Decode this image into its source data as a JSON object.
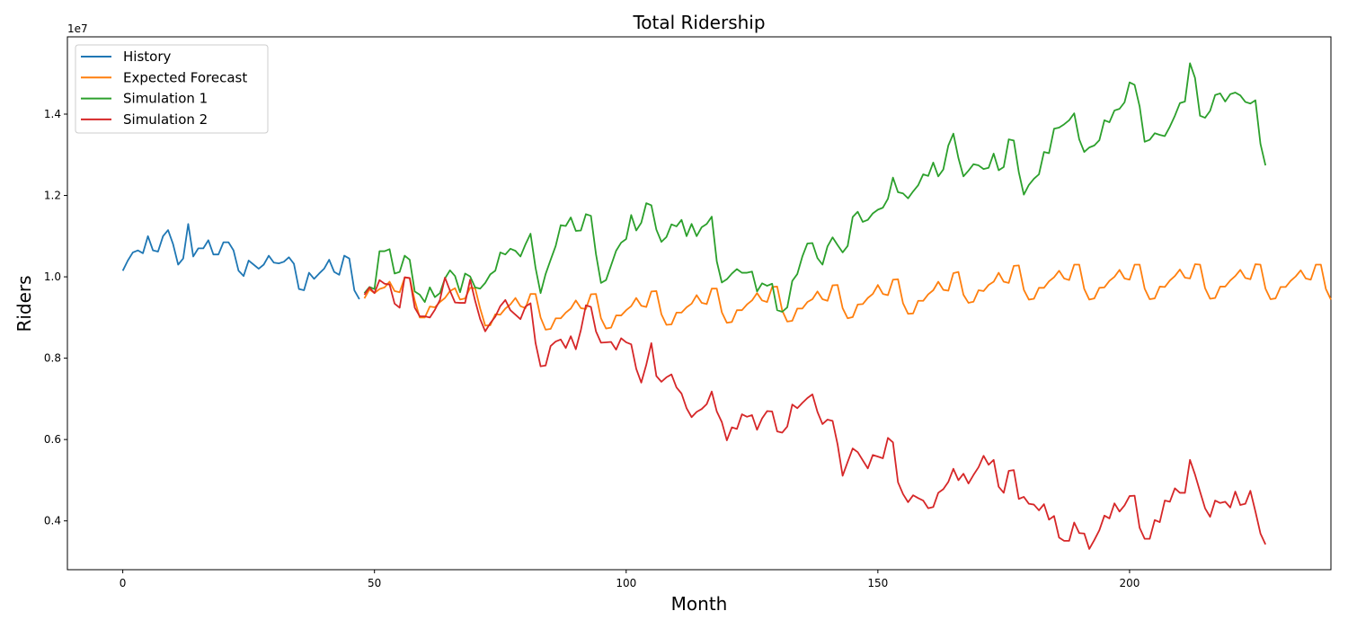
{
  "chart_data": {
    "type": "line",
    "title": "Total Ridership",
    "xlabel": "Month",
    "ylabel": "Riders",
    "y_offset_label": "1e7",
    "y_scale": 10000000,
    "xlim": [
      -11,
      240
    ],
    "ylim": [
      2800000,
      15900000
    ],
    "x_ticks": [
      0,
      50,
      100,
      150,
      200
    ],
    "y_ticks": [
      4000000,
      6000000,
      8000000,
      10000000,
      12000000,
      14000000
    ],
    "y_tick_labels": [
      "0.4",
      "0.6",
      "0.8",
      "1.0",
      "1.2",
      "1.4"
    ],
    "x_tick_labels": [
      "0",
      "50",
      "100",
      "150",
      "200"
    ],
    "grid": false,
    "legend_position": "top-left",
    "series": [
      {
        "name": "History",
        "color": "#1f77b4",
        "x_start": 0,
        "values": [
          10150000,
          10400000,
          10600000,
          10650000,
          10580000,
          11000000,
          10650000,
          10620000,
          11000000,
          11150000,
          10800000,
          10300000,
          10450000,
          11300000,
          10500000,
          10700000,
          10700000,
          10900000,
          10550000,
          10550000,
          10850000,
          10850000,
          10650000,
          10150000,
          10020000,
          10400000,
          10300000,
          10200000,
          10300000,
          10520000,
          10350000,
          10330000,
          10370000,
          10480000,
          10320000,
          9700000,
          9670000,
          10100000,
          9950000,
          10080000,
          10200000,
          10420000,
          10120000,
          10050000,
          10520000,
          10450000,
          9670000,
          9450000
        ]
      },
      {
        "name": "Expected Forecast",
        "color": "#ff7f0e",
        "x_start": 48,
        "values": [
          9470000,
          9690000,
          9600000,
          9700000,
          9740000,
          9880000,
          9650000,
          9620000,
          9980000,
          9970000,
          9420000,
          9000000,
          9000000,
          9270000,
          9250000,
          9380000,
          9480000,
          9650000,
          9720000,
          9440000,
          9470000,
          9730000,
          9720000,
          9220000,
          8800000,
          8810000,
          9080000,
          9070000,
          9220000,
          9320000,
          9480000,
          9280000,
          9230000,
          9580000,
          9580000,
          9000000,
          8700000,
          8720000,
          8980000,
          8980000,
          9120000,
          9220000,
          9420000,
          9230000,
          9210000,
          9570000,
          9580000,
          8980000,
          8730000,
          8750000,
          9050000,
          9050000,
          9180000,
          9280000,
          9480000,
          9290000,
          9260000,
          9640000,
          9650000,
          9080000,
          8820000,
          8830000,
          9120000,
          9120000,
          9250000,
          9340000,
          9550000,
          9360000,
          9330000,
          9710000,
          9710000,
          9130000,
          8870000,
          8890000,
          9180000,
          9180000,
          9320000,
          9420000,
          9600000,
          9420000,
          9380000,
          9750000,
          9760000,
          9170000,
          8900000,
          8920000,
          9220000,
          9220000,
          9380000,
          9450000,
          9640000,
          9450000,
          9410000,
          9790000,
          9800000,
          9230000,
          8980000,
          9010000,
          9320000,
          9330000,
          9480000,
          9580000,
          9800000,
          9580000,
          9550000,
          9930000,
          9940000,
          9350000,
          9090000,
          9100000,
          9410000,
          9410000,
          9570000,
          9670000,
          9880000,
          9680000,
          9660000,
          10090000,
          10120000,
          9560000,
          9360000,
          9390000,
          9670000,
          9650000,
          9800000,
          9880000,
          10100000,
          9880000,
          9850000,
          10270000,
          10280000,
          9680000,
          9440000,
          9460000,
          9730000,
          9730000,
          9890000,
          9990000,
          10150000,
          9960000,
          9920000,
          10300000,
          10300000,
          9700000,
          9440000,
          9470000,
          9730000,
          9740000,
          9900000,
          10000000,
          10170000,
          9960000,
          9930000,
          10300000,
          10300000,
          9710000,
          9450000,
          9470000,
          9760000,
          9750000,
          9910000,
          10020000,
          10180000,
          9980000,
          9960000,
          10310000,
          10300000,
          9720000,
          9460000,
          9480000,
          9760000,
          9760000,
          9910000,
          10020000,
          10170000,
          9970000,
          9940000,
          10310000,
          10300000,
          9710000,
          9450000,
          9470000,
          9750000,
          9750000,
          9900000,
          10010000,
          10160000,
          9960000,
          9930000,
          10300000,
          10300000,
          9700000,
          9440000
        ]
      },
      {
        "name": "Simulation 1",
        "color": "#2ca02c",
        "x_start": 48,
        "values": [
          9600000,
          9750000,
          9700000,
          10630000,
          10630000,
          10680000,
          10080000,
          10120000,
          10520000,
          10420000,
          9640000,
          9560000,
          9380000,
          9740000,
          9500000,
          9600000,
          9960000,
          10160000,
          10020000,
          9620000,
          10080000,
          10010000,
          9740000,
          9710000,
          9850000,
          10060000,
          10150000,
          10600000,
          10550000,
          10690000,
          10640000,
          10500000,
          10800000,
          11060000,
          10220000,
          9600000,
          10070000,
          10420000,
          10760000,
          11270000,
          11250000,
          11460000,
          11130000,
          11140000,
          11540000,
          11500000,
          10560000,
          9850000,
          9920000,
          10280000,
          10640000,
          10840000,
          10930000,
          11520000,
          11140000,
          11330000,
          11810000,
          11760000,
          11160000,
          10860000,
          10980000,
          11290000,
          11240000,
          11400000,
          11000000,
          11300000,
          11000000,
          11220000,
          11300000,
          11480000,
          10380000,
          9860000,
          9940000,
          10080000,
          10190000,
          10100000,
          10100000,
          10130000,
          9640000,
          9840000,
          9780000,
          9830000,
          9180000,
          9140000,
          9250000,
          9900000,
          10070000,
          10500000,
          10820000,
          10830000,
          10460000,
          10300000,
          10750000,
          10970000,
          10780000,
          10600000,
          10760000,
          11470000,
          11600000,
          11350000,
          11400000,
          11560000,
          11650000,
          11700000,
          11920000,
          12440000,
          12080000,
          12050000,
          11930000,
          12100000,
          12250000,
          12520000,
          12480000,
          12810000,
          12470000,
          12640000,
          13230000,
          13520000,
          12920000,
          12470000,
          12610000,
          12770000,
          12740000,
          12650000,
          12680000,
          13030000,
          12620000,
          12700000,
          13380000,
          13350000,
          12570000,
          12020000,
          12260000,
          12410000,
          12520000,
          13070000,
          13040000,
          13640000,
          13670000,
          13750000,
          13850000,
          14020000,
          13380000,
          13070000,
          13180000,
          13230000,
          13360000,
          13850000,
          13800000,
          14090000,
          14130000,
          14290000,
          14780000,
          14720000,
          14190000,
          13320000,
          13370000,
          13530000,
          13490000,
          13460000,
          13690000,
          13960000,
          14270000,
          14310000,
          15250000,
          14890000,
          13960000,
          13910000,
          14080000,
          14470000,
          14510000,
          14310000,
          14490000,
          14530000,
          14460000,
          14300000,
          14260000,
          14340000,
          13270000,
          12740000
        ]
      },
      {
        "name": "Simulation 2",
        "color": "#d62728",
        "x_start": 48,
        "values": [
          9560000,
          9740000,
          9600000,
          9920000,
          9830000,
          9810000,
          9340000,
          9240000,
          9990000,
          9970000,
          9240000,
          9030000,
          9030000,
          9000000,
          9190000,
          9430000,
          9980000,
          9660000,
          9370000,
          9360000,
          9360000,
          9930000,
          9410000,
          8960000,
          8660000,
          8860000,
          9020000,
          9280000,
          9430000,
          9180000,
          9070000,
          8960000,
          9270000,
          9350000,
          8370000,
          7800000,
          7820000,
          8300000,
          8410000,
          8460000,
          8250000,
          8540000,
          8220000,
          8690000,
          9300000,
          9260000,
          8660000,
          8380000,
          8390000,
          8400000,
          8210000,
          8490000,
          8390000,
          8340000,
          7740000,
          7400000,
          7840000,
          8370000,
          7560000,
          7420000,
          7530000,
          7600000,
          7280000,
          7130000,
          6770000,
          6550000,
          6680000,
          6750000,
          6870000,
          7180000,
          6690000,
          6430000,
          5980000,
          6300000,
          6260000,
          6620000,
          6560000,
          6600000,
          6240000,
          6520000,
          6700000,
          6690000,
          6200000,
          6170000,
          6320000,
          6860000,
          6770000,
          6900000,
          7020000,
          7110000,
          6680000,
          6380000,
          6490000,
          6460000,
          5880000,
          5110000,
          5450000,
          5780000,
          5690000,
          5490000,
          5290000,
          5620000,
          5580000,
          5540000,
          6040000,
          5930000,
          4950000,
          4660000,
          4460000,
          4630000,
          4560000,
          4500000,
          4310000,
          4340000,
          4690000,
          4780000,
          4960000,
          5280000,
          5000000,
          5160000,
          4920000,
          5130000,
          5320000,
          5600000,
          5380000,
          5500000,
          4840000,
          4690000,
          5230000,
          5250000,
          4540000,
          4590000,
          4420000,
          4400000,
          4260000,
          4410000,
          4030000,
          4120000,
          3590000,
          3510000,
          3510000,
          3960000,
          3700000,
          3690000,
          3310000,
          3530000,
          3770000,
          4130000,
          4060000,
          4430000,
          4230000,
          4380000,
          4610000,
          4620000,
          3830000,
          3560000,
          3560000,
          4020000,
          3970000,
          4500000,
          4470000,
          4800000,
          4690000,
          4690000,
          5500000,
          5140000,
          4720000,
          4310000,
          4100000,
          4500000,
          4440000,
          4470000,
          4330000,
          4720000,
          4390000,
          4420000,
          4740000,
          4230000,
          3690000,
          3420000
        ]
      }
    ]
  }
}
